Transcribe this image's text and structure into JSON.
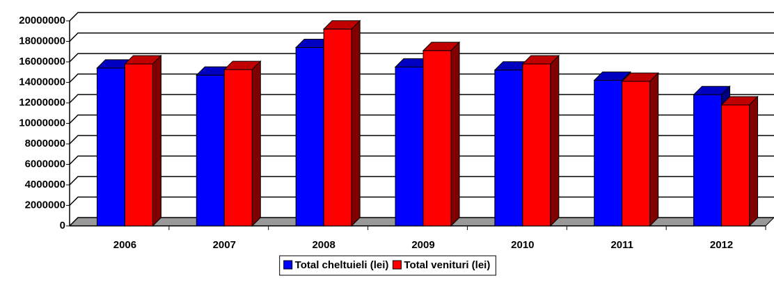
{
  "chart_data": {
    "type": "bar3d",
    "categories": [
      "2006",
      "2007",
      "2008",
      "2009",
      "2010",
      "2011",
      "2012"
    ],
    "series": [
      {
        "name": "Total cheltuieli (lei)",
        "color": "#0000ff",
        "side": "#000080",
        "values": [
          15400000,
          14700000,
          17400000,
          15500000,
          15200000,
          14200000,
          12800000
        ]
      },
      {
        "name": "Total venituri (lei)",
        "color": "#ff0000",
        "side": "#800000",
        "values": [
          15800000,
          15250000,
          19200000,
          17100000,
          15800000,
          14100000,
          11800000
        ]
      }
    ],
    "ylim": [
      0,
      20000000
    ],
    "yticks": [
      0,
      2000000,
      4000000,
      6000000,
      8000000,
      10000000,
      12000000,
      14000000,
      16000000,
      18000000,
      20000000
    ],
    "grid": true,
    "legend": "bottom"
  }
}
